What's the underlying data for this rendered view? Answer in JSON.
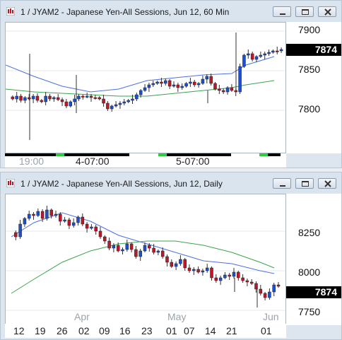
{
  "windows": [
    {
      "id": "hourly",
      "title": "1 / JYAM2 - Japanese Yen-All Sessions, Jun 12, 60 Min",
      "price_axis": {
        "ticks": [
          "7900",
          "7850",
          "7800"
        ],
        "last_price": "7874"
      },
      "time_axis": {
        "labels": [
          "19:00",
          "4-07:00",
          "5-07:00"
        ]
      },
      "colors": {
        "up": "#1f4fd1",
        "down": "#c0152a",
        "ma_fast": "#4d6fe6",
        "ma_slow": "#3aa34d",
        "session_on": "#000000",
        "session_mark": "#2ecc40"
      }
    },
    {
      "id": "daily",
      "title": "1 / JYAM2 - Japanese Yen-All Sessions, Jun 12, Daily",
      "price_axis": {
        "ticks": [
          "8250",
          "8000",
          "7750"
        ],
        "last_price": "7874"
      },
      "time_axis": {
        "days": [
          "12",
          "19",
          "26",
          "02",
          "09",
          "16",
          "23",
          "01",
          "07",
          "14",
          "21",
          "01"
        ],
        "months": [
          "Apr",
          "May",
          "Jun"
        ]
      },
      "colors": {
        "up": "#1f4fd1",
        "down": "#c0152a",
        "ma_fast": "#4d6fe6",
        "ma_slow": "#3aa34d"
      }
    }
  ]
}
